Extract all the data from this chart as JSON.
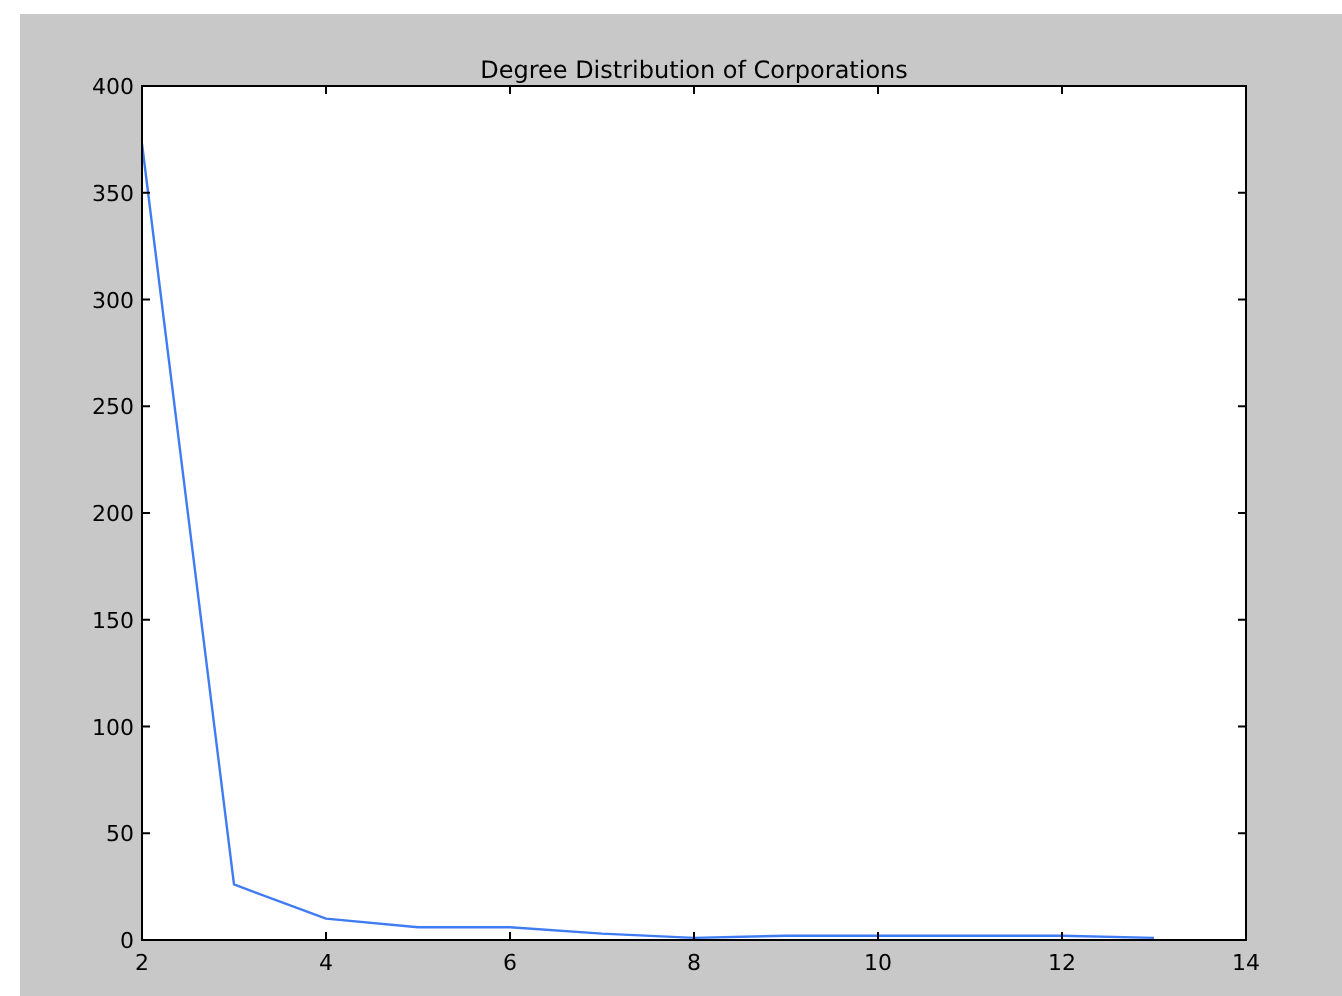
{
  "chart_data": {
    "type": "line",
    "title": "Degree Distribution of Corporations",
    "x": [
      2,
      3,
      4,
      5,
      6,
      7,
      8,
      9,
      10,
      11,
      12,
      13
    ],
    "series": [
      {
        "color": "#3f7cf4",
        "values": [
          373,
          26,
          10,
          6,
          6,
          3,
          1,
          2,
          2,
          2,
          2,
          1
        ]
      }
    ],
    "xlim": [
      2,
      14
    ],
    "xticks": [
      2,
      4,
      6,
      8,
      10,
      12,
      14
    ],
    "ylim": [
      0,
      400
    ],
    "yticks": [
      0,
      50,
      100,
      150,
      200,
      250,
      300,
      350,
      400
    ],
    "grid": false,
    "marker": "none",
    "line_style": "solid"
  }
}
